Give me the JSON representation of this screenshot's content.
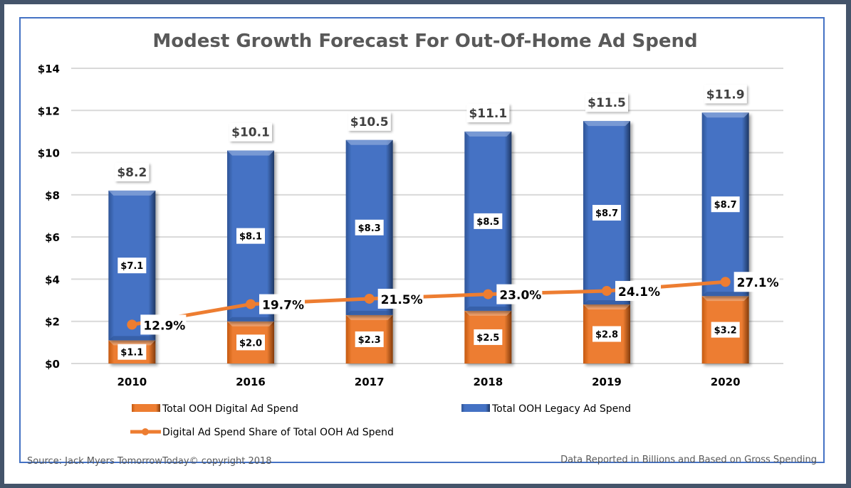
{
  "chart_data": {
    "type": "bar",
    "stacked": true,
    "title": "Modest Growth Forecast For Out-Of-Home Ad Spend",
    "categories": [
      "2010",
      "2016",
      "2017",
      "2018",
      "2019",
      "2020"
    ],
    "series": [
      {
        "name": "Total OOH Digital Ad Spend",
        "type": "bar",
        "color": "#ed7d31",
        "values": [
          1.1,
          2.0,
          2.3,
          2.5,
          2.8,
          3.2
        ],
        "labels": [
          "$1.1",
          "$2.0",
          "$2.3",
          "$2.5",
          "$2.8",
          "$3.2"
        ]
      },
      {
        "name": "Total OOH Legacy Ad Spend",
        "type": "bar",
        "color": "#4472c4",
        "values": [
          7.1,
          8.1,
          8.3,
          8.5,
          8.7,
          8.7
        ],
        "labels": [
          "$7.1",
          "$8.1",
          "$8.3",
          "$8.5",
          "$8.7",
          "$8.7"
        ]
      },
      {
        "name": "Digital Ad Spend Share of Total OOH Ad Spend",
        "type": "line",
        "color": "#ed7d31",
        "values": [
          12.9,
          19.7,
          21.5,
          23.0,
          24.1,
          27.1
        ],
        "labels": [
          "12.9%",
          "19.7%",
          "21.5%",
          "23.0%",
          "24.1%",
          "27.1%"
        ],
        "plotted_on_scale": "percent shown against $ axis (value/7)"
      }
    ],
    "totals": [
      8.2,
      10.1,
      10.5,
      11.1,
      11.5,
      11.9
    ],
    "total_labels": [
      "$8.2",
      "$10.1",
      "$10.5",
      "$11.1",
      "$11.5",
      "$11.9"
    ],
    "xlabel": "",
    "ylabel": "",
    "ylim": [
      0,
      14
    ],
    "yticks": [
      0,
      2,
      4,
      6,
      8,
      10,
      12,
      14
    ],
    "ytick_labels": [
      "$0",
      "$2",
      "$4",
      "$6",
      "$8",
      "$10",
      "$12",
      "$14"
    ],
    "grid": true,
    "legend_position": "bottom"
  },
  "footer": {
    "source": "Source: Jack Myers TomorrowToday© copyright 2018",
    "note": "Data Reported in Billions and Based on Gross Spending"
  }
}
